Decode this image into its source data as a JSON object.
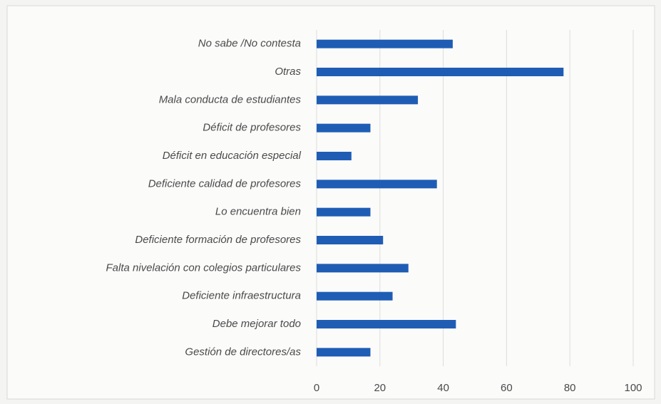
{
  "chart_data": {
    "type": "bar",
    "orientation": "horizontal",
    "categories": [
      "No sabe /No contesta",
      "Otras",
      "Mala conducta de estudiantes",
      "Déficit de profesores",
      "Déficit en educación especial",
      "Deficiente calidad de profesores",
      "Lo encuentra bien",
      "Deficiente formación de profesores",
      "Falta nivelación con colegios particulares",
      "Deficiente infraestructura",
      "Debe mejorar todo",
      "Gestión de directores/as"
    ],
    "values": [
      43,
      78,
      32,
      17,
      11,
      38,
      17,
      21,
      29,
      24,
      44,
      17
    ],
    "color": "#1f5db5",
    "xlim": [
      0,
      100
    ],
    "xticks": [
      0,
      20,
      40,
      60,
      80,
      100
    ],
    "grid": true
  }
}
